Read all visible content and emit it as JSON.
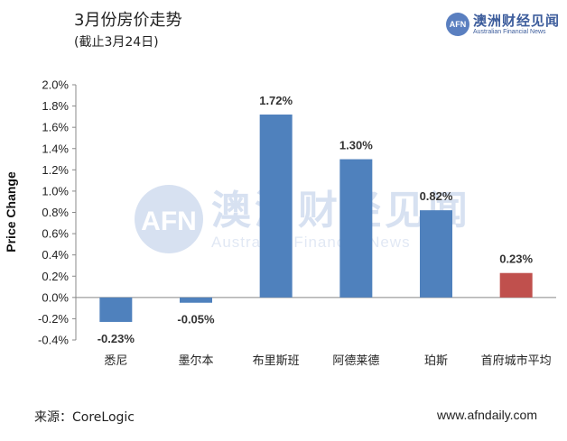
{
  "header": {
    "title": "3月份房价走势",
    "subtitle": "(截止3月24日)"
  },
  "logo": {
    "badge": "AFN",
    "name_cn": "澳洲财经见闻",
    "name_en": "Australian Financial News"
  },
  "watermark": {
    "name_cn": "澳洲财经见闻",
    "name_en": "Australian Financial News",
    "badge": "AFN"
  },
  "footer": {
    "source": "来源：CoreLogic",
    "site": "www.afndaily.com"
  },
  "colors": {
    "city_bar": "#4f81bd",
    "average_bar": "#c0504d",
    "watermark": "#b8c9e6"
  },
  "chart_data": {
    "type": "bar",
    "title": "",
    "xlabel": "",
    "ylabel": "Price Change",
    "ylim": [
      -0.4,
      2.0
    ],
    "yticks": [
      "2.0%",
      "1.8%",
      "1.6%",
      "1.4%",
      "1.2%",
      "1.0%",
      "0.8%",
      "0.6%",
      "0.4%",
      "0.2%",
      "0.0%",
      "-0.2%",
      "-0.4%"
    ],
    "ytick_values": [
      2.0,
      1.8,
      1.6,
      1.4,
      1.2,
      1.0,
      0.8,
      0.6,
      0.4,
      0.2,
      0.0,
      -0.2,
      -0.4
    ],
    "categories": [
      "悉尼",
      "墨尔本",
      "布里斯班",
      "阿德莱德",
      "珀斯",
      "首府城市平均"
    ],
    "values": [
      -0.23,
      -0.05,
      1.72,
      1.3,
      0.82,
      0.23
    ],
    "data_labels": [
      "-0.23%",
      "-0.05%",
      "1.72%",
      "1.30%",
      "0.82%",
      "0.23%"
    ],
    "bar_colors": [
      "#4f81bd",
      "#4f81bd",
      "#4f81bd",
      "#4f81bd",
      "#4f81bd",
      "#c0504d"
    ],
    "grid": false,
    "legend": "none"
  }
}
